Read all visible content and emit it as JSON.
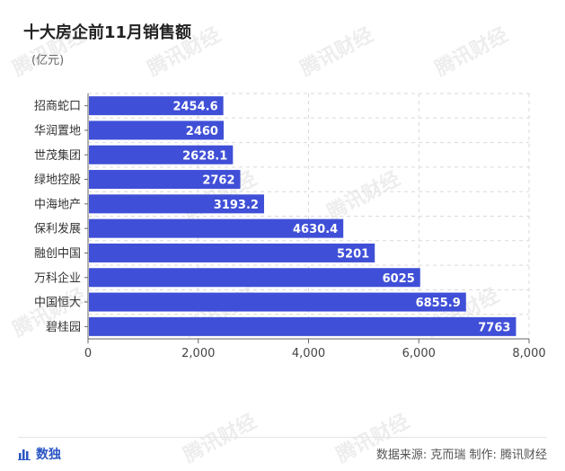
{
  "title": "十大房企前11月销售额",
  "unit": "(亿元)",
  "brand": {
    "label": "数独",
    "icon": "bar-chart-icon"
  },
  "source": "数据来源: 克而瑞 制作: 腾讯财经",
  "watermark": "腾讯财经",
  "colors": {
    "bar": "#3f4fd7",
    "grid": "#d9d9d9",
    "axis": "#666666",
    "label": "#ffffff",
    "brand": "#2a55c4"
  },
  "chart_data": {
    "type": "bar",
    "orientation": "horizontal",
    "categories": [
      "招商蛇口",
      "华润置地",
      "世茂集团",
      "绿地控股",
      "中海地产",
      "保利发展",
      "融创中国",
      "万科企业",
      "中国恒大",
      "碧桂园"
    ],
    "values": [
      2454.6,
      2460,
      2628.1,
      2762,
      3193.2,
      4630.4,
      5201,
      6025,
      6855.9,
      7763
    ],
    "value_labels": [
      "2454.6",
      "2460",
      "2628.1",
      "2762",
      "3193.2",
      "4630.4",
      "5201",
      "6025",
      "6855.9",
      "7763"
    ],
    "xlim": [
      0,
      8000
    ],
    "xticks": [
      0,
      2000,
      4000,
      6000,
      8000
    ],
    "xtick_labels": [
      "0",
      "2,000",
      "4,000",
      "6,000",
      "8,000"
    ],
    "grid": true,
    "title": "十大房企前11月销售额",
    "ylabel": "(亿元)"
  }
}
